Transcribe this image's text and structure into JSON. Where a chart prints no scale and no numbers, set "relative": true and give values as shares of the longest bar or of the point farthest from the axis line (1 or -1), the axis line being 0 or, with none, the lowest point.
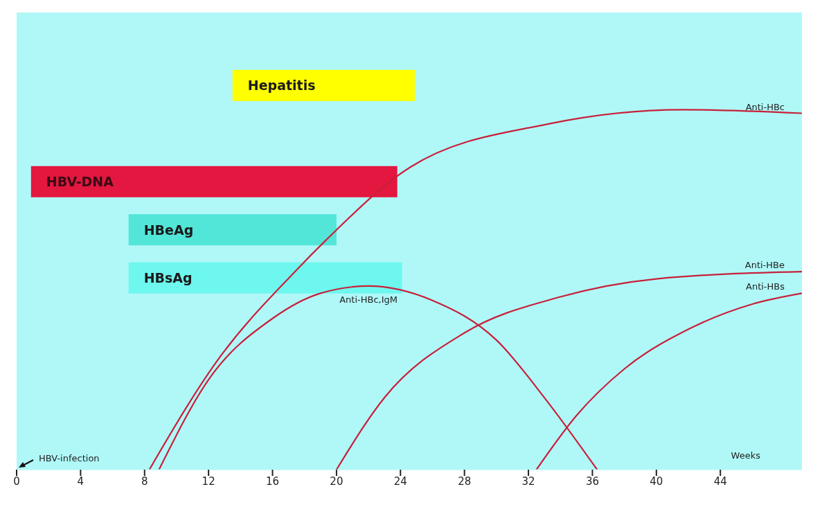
{
  "chart_data": [
    {
      "type": "bar",
      "orientation": "horizontal",
      "categories": [
        "Hepatitis",
        null,
        "HBV-DNA",
        "HBeAg",
        "HBsAg"
      ],
      "base": [
        13.5,
        null,
        0.9,
        7,
        7
      ],
      "values": [
        11.4,
        null,
        22.9,
        13,
        17.1
      ],
      "colors": [
        "#ffff00",
        null,
        "#e3173f",
        "#52e6d8",
        "#6ef7ee"
      ],
      "xlim": [
        0,
        49.1
      ],
      "tick_labels": false
    },
    {
      "type": "line",
      "relative": true,
      "xlabel": "Weeks",
      "xlim": [
        0,
        49.1
      ],
      "xticks": [
        0,
        4,
        8,
        12,
        16,
        20,
        24,
        28,
        32,
        36,
        40,
        44
      ],
      "tick_labels": "x",
      "annotations": [
        "HBV-infection"
      ],
      "series": [
        {
          "name": "Anti-HBc",
          "color": "#c8203a",
          "x": [
            8.3,
            12.5,
            17.4,
            19.4,
            24.6,
            33.2,
            41.7,
            49.1
          ],
          "values": [
            0,
            0.3,
            0.55,
            0.64,
            0.84,
            0.96,
            1.0,
            0.99
          ]
        },
        {
          "name": "Anti-HBc,IgM",
          "color": "#c8203a",
          "x": [
            8.9,
            12,
            16,
            19,
            22,
            26,
            30,
            33,
            36.3
          ],
          "values": [
            0,
            0.25,
            0.42,
            0.49,
            0.51,
            0.47,
            0.36,
            0.2,
            0
          ]
        },
        {
          "name": "Anti-HBe",
          "color": "#c8203a",
          "x": [
            20,
            23,
            28,
            34,
            40,
            49.1
          ],
          "values": [
            0,
            0.2,
            0.38,
            0.48,
            0.53,
            0.55
          ]
        },
        {
          "name": "Anti-HBs",
          "color": "#c8203a",
          "x": [
            32.5,
            35,
            38,
            42,
            46,
            49.1
          ],
          "values": [
            0,
            0.15,
            0.28,
            0.39,
            0.46,
            0.49
          ]
        }
      ]
    }
  ]
}
